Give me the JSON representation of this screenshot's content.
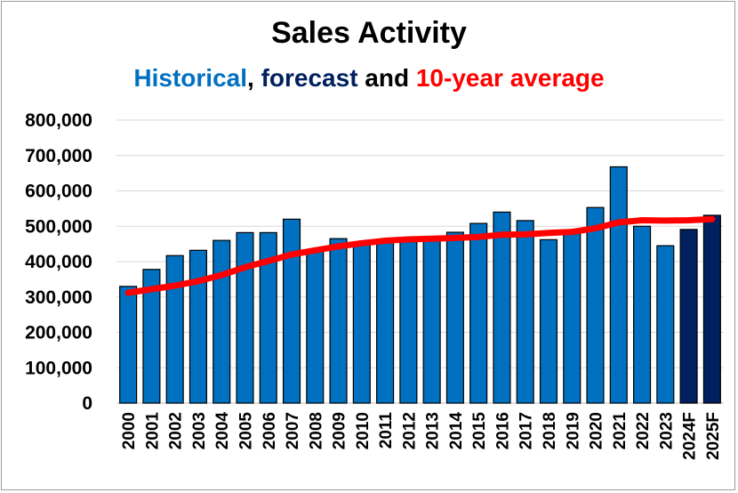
{
  "chart_data": {
    "type": "bar",
    "title": "Sales Activity",
    "subtitle": {
      "historical": "Historical",
      "sep1": ", ",
      "forecast": "forecast",
      "sep2": " and ",
      "average": "10-year average"
    },
    "colors": {
      "historical": "#0070C0",
      "forecast": "#002060",
      "average": "#FF0000",
      "bar_border": "#000000",
      "grid": "#d9d9d9"
    },
    "ylim": [
      0,
      800000
    ],
    "yticks": [
      0,
      100000,
      200000,
      300000,
      400000,
      500000,
      600000,
      700000,
      800000
    ],
    "ytick_labels": [
      "0",
      "100,000",
      "200,000",
      "300,000",
      "400,000",
      "500,000",
      "600,000",
      "700,000",
      "800,000"
    ],
    "grid": true,
    "categories": [
      "2000",
      "2001",
      "2002",
      "2003",
      "2004",
      "2005",
      "2006",
      "2007",
      "2008",
      "2009",
      "2010",
      "2011",
      "2012",
      "2013",
      "2014",
      "2015",
      "2016",
      "2017",
      "2018",
      "2019",
      "2020",
      "2021",
      "2022",
      "2023",
      "2024F",
      "2025F"
    ],
    "series": [
      {
        "name": "Historical",
        "kind": "bar",
        "values": [
          330000,
          378000,
          417000,
          432000,
          460000,
          482000,
          482000,
          520000,
          432000,
          465000,
          448000,
          458000,
          456000,
          458000,
          483000,
          508000,
          540000,
          516000,
          462000,
          490000,
          553000,
          668000,
          500000,
          445000,
          null,
          null
        ]
      },
      {
        "name": "forecast",
        "kind": "bar",
        "values": [
          null,
          null,
          null,
          null,
          null,
          null,
          null,
          null,
          null,
          null,
          null,
          null,
          null,
          null,
          null,
          null,
          null,
          null,
          null,
          null,
          null,
          null,
          null,
          null,
          491000,
          531000
        ]
      },
      {
        "name": "10-year average",
        "kind": "line",
        "values": [
          312000,
          322000,
          332000,
          345000,
          362000,
          384000,
          402000,
          420000,
          432000,
          443000,
          452000,
          459000,
          463000,
          465000,
          467000,
          470000,
          476000,
          477000,
          481000,
          484000,
          494000,
          511000,
          517000,
          516000,
          517000,
          520000
        ]
      }
    ]
  }
}
